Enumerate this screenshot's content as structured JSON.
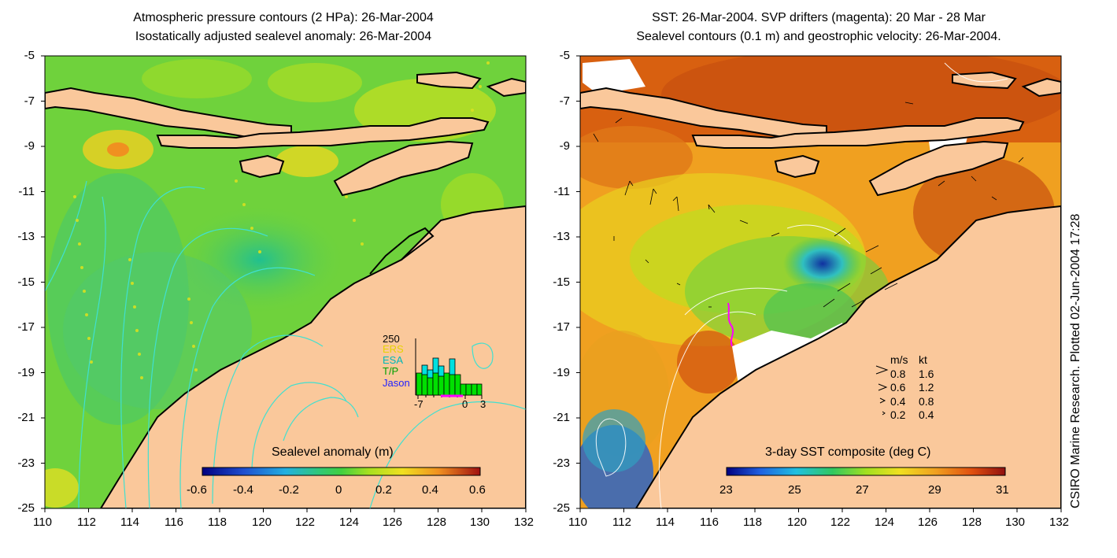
{
  "left_panel": {
    "title_line1": "Atmospheric pressure contours (2 HPa): 26-Mar-2004",
    "title_line2": "Isostatically adjusted sealevel anomaly: 26-Mar-2004",
    "colorbar_label": "Sealevel anomaly (m)",
    "colorbar_ticks": [
      "-0.6",
      "-0.4",
      "-0.2",
      "0",
      "0.2",
      "0.4",
      "0.6"
    ],
    "inset": {
      "ymax_label": "250",
      "legend": [
        {
          "label": "ERS",
          "color": "#e6d200"
        },
        {
          "label": "ESA",
          "color": "#00b8b8"
        },
        {
          "label": "T/P",
          "color": "#00a000"
        },
        {
          "label": "Jason",
          "color": "#2020ff"
        }
      ],
      "x_ticks": [
        "-7",
        "0",
        "3"
      ]
    }
  },
  "right_panel": {
    "title_line1": "SST: 26-Mar-2004. SVP drifters (magenta): 20 Mar - 28 Mar",
    "title_line2": "Sealevel contours (0.1 m) and geostrophic velocity: 26-Mar-2004.",
    "colorbar_label": "3-day SST composite (deg C)",
    "colorbar_ticks": [
      "23",
      "25",
      "27",
      "29",
      "31"
    ],
    "velocity_legend": {
      "header_ms": "m/s",
      "header_kt": "kt",
      "rows": [
        {
          "ms": "0.8",
          "kt": "1.6"
        },
        {
          "ms": "0.6",
          "kt": "1.2"
        },
        {
          "ms": "0.4",
          "kt": "0.8"
        },
        {
          "ms": "0.2",
          "kt": "0.4"
        }
      ]
    }
  },
  "axes": {
    "y_ticks": [
      "-5",
      "-7",
      "-9",
      "-11",
      "-13",
      "-15",
      "-17",
      "-19",
      "-21",
      "-23",
      "-25"
    ],
    "x_ticks": [
      "110",
      "112",
      "114",
      "116",
      "118",
      "120",
      "122",
      "124",
      "126",
      "128",
      "130",
      "132"
    ]
  },
  "credit": "CSIRO Marine Research. Plotted 02-Jun-2004 17:28",
  "colors": {
    "land": "#fac89b",
    "ocean_green": "#6fd23c",
    "sst_orange": "#f0a020",
    "contour_cyan": "#40e0d0"
  }
}
